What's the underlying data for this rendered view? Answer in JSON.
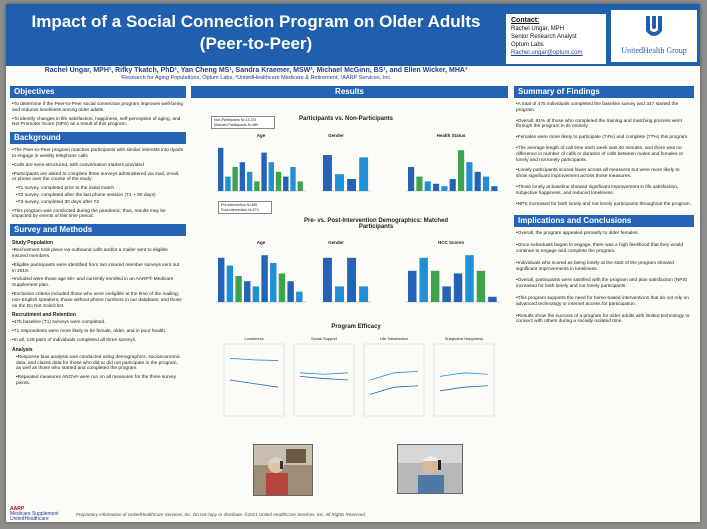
{
  "header": {
    "title_line1": "Impact of a Social Connection Program on Older Adults",
    "title_line2": "(Peer-to-Peer)",
    "authors": "Rachel Ungar, MPH¹, Rifky Tkatch, PhD¹, Yan Cheng MS¹, Sandra Kraemer, MSW², Michael McGinn, BS¹, and Ellen Wicker, MHA³",
    "affiliations": "¹Research for Aging Populations, Optum Labs, ²UnitedHealthcare Medicare & Retirement, ³AARP Services, Inc."
  },
  "contact": {
    "title": "Contact:",
    "name": "Rachel Ungar, MPH",
    "role": "Senior Research Analyst",
    "org": "Optum Labs",
    "email": "Rachel.ungar@optum.com"
  },
  "logo": {
    "text": "UnitedHealth Group",
    "icon": "unitedhealth-u-icon"
  },
  "objectives": {
    "heading": "Objectives",
    "items": [
      "•To determine if the Peer-to-Peer social connection program improves well-being and reduces loneliness among older adults.",
      "•To identify changes in life satisfaction, happiness, self-perception of aging, and Net Promoter Score (NPS) as a result of this program."
    ]
  },
  "background": {
    "heading": "Background",
    "items": [
      "•The Peer-to-Peer program matches participants with similar interests into dyads to engage in weekly telephone calls",
      "•Calls are semi-structured, with conversation starters provided",
      "•Participants are asked to complete three surveys administered via mail, email, or phone over the course of the study:",
      "•T1 survey, completed prior to the initial match",
      "•T2 survey, completed after the last phone session (T1 + 90 days)",
      "•T3 survey, completed 30 days after T2",
      "•This program was conducted during the pandemic; thus, results may be impacted by events of this time period."
    ]
  },
  "methods": {
    "heading": "Survey and Methods",
    "study_population": "Study Population",
    "population_items": [
      "•Recruitment took place via outbound calls and/or a mailer sent to eligible insured members.",
      "•Eligible participants were identified from two insured member surveys sent out in 2019.",
      "•Included were those age 65+ and currently enrolled in an AARP® Medicare Supplement plan.",
      "•Exclusion criteria included those who were ineligible at the time of the mailing; non-English speakers; those without phone numbers in our database; and those on the Do Not Solicit list."
    ],
    "recruitment": "Recruitment and Retention",
    "recruitment_items": [
      "•475 baseline (T1) surveys were completed.",
      "•T1 respondents were more likely to be female, older, and in poor health.",
      "•In all, 125 pairs of individuals completed all three surveys."
    ],
    "analysis": "Analysis",
    "analysis_items": [
      "•Response bias analysis was conducted using demographics, socioeconomic data, and claims data for those who did or did not participate in the program, as well as those who started and completed the program.",
      "•Repeated measures ANOVA were run on all measures for the three survey points."
    ]
  },
  "results": {
    "heading": "Results",
    "chart1_title": "Participants vs. Non-Participants",
    "chart1_legend": [
      "Non-Participants N=13,224",
      "Matched Participants N=489"
    ],
    "chart1_panels": [
      "Age",
      "Gender",
      "Health Status"
    ],
    "chart2_title_line1": "Pre- vs. Post-Intervention Demographics: Matched",
    "chart2_title_line2": "Participants",
    "chart2_legend": [
      "Pre-intervention N=489",
      "Post-intervention N=274"
    ],
    "chart2_panels": [
      "Age",
      "Gender",
      "HCC Scores"
    ],
    "chart3_title": "Program Efficacy",
    "chart3_panels": [
      "Loneliness",
      "Social Support",
      "Life Satisfaction",
      "Subjective Happiness"
    ]
  },
  "summary": {
    "heading": "Summary of Findings",
    "items": [
      "•A total of 475 individuals completed the baseline survey and 347 started the program.",
      "•Overall, 81% of those who completed the training and matching process went through the program in its entirety.",
      "•Females were more likely to participate (74%) and complete (77%) this program.",
      "•The average length of call time each week was 40 minutes, and there was no difference in number of calls or duration of calls between males and females or lonely and not lonely participants.",
      "•Lonely participants scored lower across all measures but were more likely to show significant improvement across those measures.",
      "•Those lonely at baseline showed significant improvement in life satisfaction, subjective happiness, and reduced loneliness.",
      "•NPS increased for both lonely and not lonely participants throughout the program."
    ]
  },
  "conclusions": {
    "heading": "Implications and Conclusions",
    "items": [
      "•Overall, the program appealed primarily to older females.",
      "•Once individuals began to engage, there was a high likelihood that they would continue to engage and complete the program.",
      "•Individuals who scored as being lonely at the start of the program showed significant improvements in loneliness.",
      "•Overall, participants were satisfied with the program and plan satisfaction (NPS) increased for both lonely and not lonely participants.",
      "•This program supports the need for home-based interventions that do not rely on advanced technology or internet access for participation.",
      "•Results show the success of a program for older adults with limited technology to connect with others during a socially isolated time."
    ]
  },
  "footer": {
    "brand1": "AARP",
    "brand2": "Medicare Supplement",
    "brand3": "UnitedHealthcare",
    "disclaimer": "Proprietary information of UnitedHealthCare Services, Inc. Do not copy or distribute. ©2021 United HealthCare Services, Inc. All Rights Reserved."
  },
  "colors": {
    "blue": "#2563b6",
    "green": "#3fa34d",
    "teal": "#1f8fd6",
    "navy": "#1f3f8e"
  }
}
